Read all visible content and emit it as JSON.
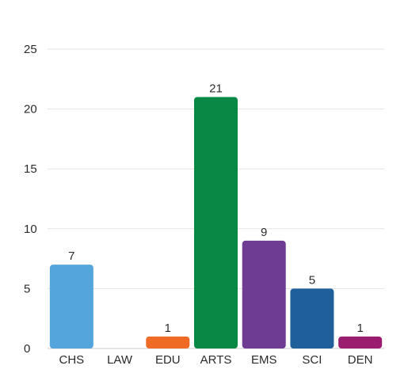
{
  "chart_data": {
    "type": "bar",
    "categories": [
      "CHS",
      "LAW",
      "EDU",
      "ARTS",
      "EMS",
      "SCI",
      "DEN"
    ],
    "values": [
      7,
      0,
      1,
      21,
      9,
      5,
      1
    ],
    "data_labels": [
      "7",
      "",
      "1",
      "21",
      "9",
      "5",
      "1"
    ],
    "colors": [
      "#55a5dd",
      "#ffffff",
      "#ee6a25",
      "#078945",
      "#6f3c93",
      "#1f5f9a",
      "#9b1d6f"
    ],
    "ylim": [
      0,
      25
    ],
    "yticks": [
      0,
      5,
      10,
      15,
      20,
      25
    ],
    "grid": true,
    "title": "",
    "xlabel": "",
    "ylabel": ""
  }
}
